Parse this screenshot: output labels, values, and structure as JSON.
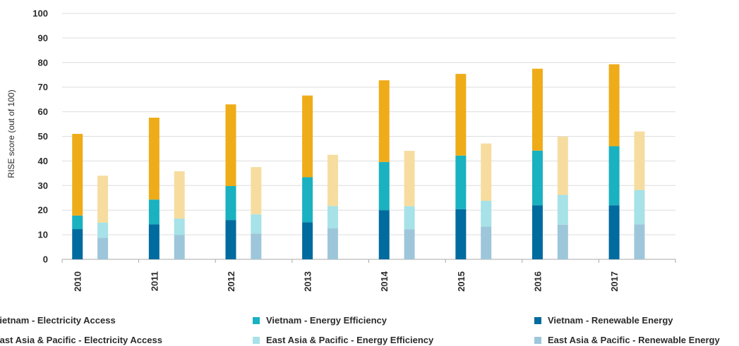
{
  "chart_data": {
    "type": "bar",
    "stacked": true,
    "ylabel": "RISE score (out of 100)",
    "ylim": [
      0,
      100
    ],
    "yticks": [
      0,
      10,
      20,
      30,
      40,
      50,
      60,
      70,
      80,
      90,
      100
    ],
    "grid": true,
    "legend_position": "bottom",
    "categories": [
      "2010",
      "2011",
      "2012",
      "2013",
      "2014",
      "2015",
      "2016",
      "2017"
    ],
    "groups": [
      {
        "name": "Vietnam",
        "segments": [
          {
            "series": "Vietnam - Renewable Energy",
            "color": "#006b9e",
            "values": [
              12.3,
              14.2,
              16.0,
              15.1,
              20.0,
              20.4,
              22.0,
              22.0
            ]
          },
          {
            "series": "Vietnam -  Energy Efficiency",
            "color": "#1ab1c1",
            "values": [
              5.5,
              10.1,
              13.8,
              18.3,
              19.6,
              21.8,
              22.2,
              24.0
            ]
          },
          {
            "series": "Vietnam - Electricity Access",
            "color": "#efac19",
            "values": [
              33.2,
              33.3,
              33.2,
              33.2,
              33.2,
              33.2,
              33.3,
              33.3
            ]
          }
        ]
      },
      {
        "name": "East Asia & Pacific",
        "segments": [
          {
            "series": "East Asia & Pacific - Renewable Energy",
            "color": "#9ec6da",
            "values": [
              8.8,
              9.9,
              10.5,
              12.6,
              12.2,
              13.3,
              14.1,
              14.2
            ]
          },
          {
            "series": "East Asia & Pacific - Energy Efficiency",
            "color": "#a6e2e7",
            "values": [
              6.1,
              6.7,
              7.8,
              9.1,
              9.4,
              10.5,
              12.1,
              14.0
            ]
          },
          {
            "series": "East Asia & Pacific - Electricity Access",
            "color": "#f6dd9f",
            "values": [
              19.1,
              19.2,
              19.2,
              20.8,
              22.5,
              23.3,
              23.7,
              23.8
            ]
          }
        ]
      }
    ],
    "legend": [
      {
        "label": "Vietnam - Electricity Access",
        "color": "#efac19"
      },
      {
        "label": "Vietnam -  Energy Efficiency",
        "color": "#1ab1c1"
      },
      {
        "label": "Vietnam - Renewable Energy",
        "color": "#006b9e"
      },
      {
        "label": "East Asia & Pacific - Electricity Access",
        "color": "#f6dd9f"
      },
      {
        "label": "East Asia & Pacific - Energy Efficiency",
        "color": "#a6e2e7"
      },
      {
        "label": "East Asia & Pacific - Renewable Energy",
        "color": "#9ec6da"
      }
    ]
  }
}
